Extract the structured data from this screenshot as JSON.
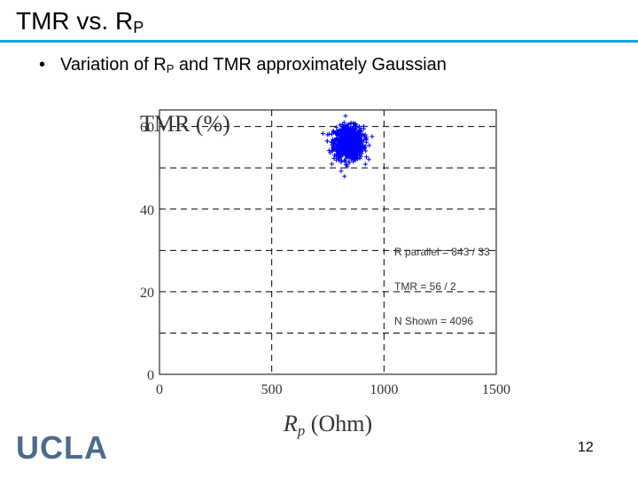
{
  "slide": {
    "title_main": "TMR vs. R",
    "title_sub": "P",
    "bullet_pre": "Variation of R",
    "bullet_sub": "P",
    "bullet_post": " and TMR approximately Gaussian",
    "bullet_marker": "•",
    "page_number": "12",
    "logo_text": "UCLA"
  },
  "colors": {
    "accent_rule": "#1aa3d9",
    "scatter": "#0000ff",
    "logo": "#4a6b8f"
  },
  "chart_data": {
    "type": "scatter",
    "ylabel": "TMR (%)",
    "xlabel_symbol": "R",
    "xlabel_sub": "p",
    "xlabel_unit": "(Ohm)",
    "xlim": [
      0,
      1500
    ],
    "ylim": [
      0,
      64
    ],
    "x_ticks": [
      0,
      500,
      1000,
      1500
    ],
    "y_ticks": [
      0,
      20,
      40,
      60
    ],
    "grid": true,
    "series": [
      {
        "marker": "+",
        "center_x": 843,
        "center_y": 56,
        "std_x": 33,
        "std_y": 2,
        "n": 4096
      }
    ],
    "annotations": [
      "R parallel = 843 / 33",
      "TMR = 56 / 2",
      "N Shown = 4096"
    ]
  }
}
